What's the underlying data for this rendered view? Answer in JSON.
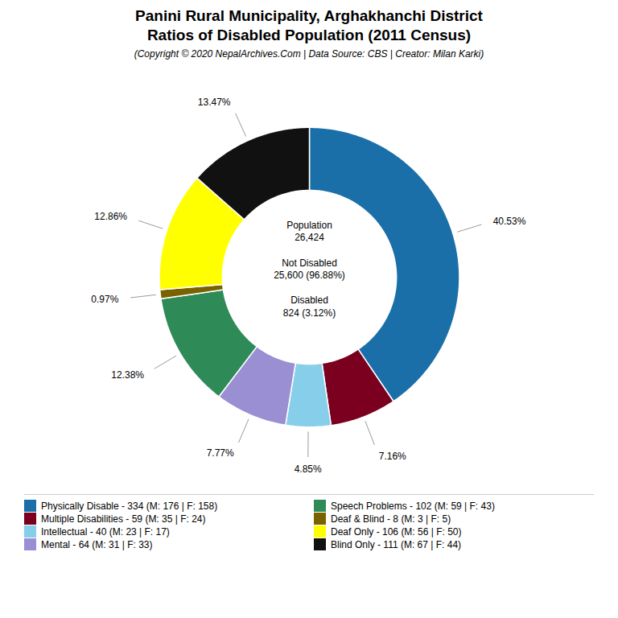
{
  "chart_data": {
    "type": "donut",
    "title": "Panini Rural Municipality, Arghakhanchi District\nRatios of Disabled Population (2011 Census)",
    "subtitle": "(Copyright © 2020 NepalArchives.Com | Data Source: CBS | Creator: Milan Karki)",
    "categories": [
      "Physically Disable - 334 (M: 176 | F: 158)",
      "Multiple Disabilities - 59 (M: 35 | F: 24)",
      "Intellectual - 40 (M: 23 | F: 17)",
      "Mental - 64 (M: 31 | F: 33)",
      "Speech Problems - 102 (M: 59 | F: 43)",
      "Deaf & Blind - 8 (M: 3 | F: 5)",
      "Deaf Only - 106 (M: 56 | F: 50)",
      "Blind Only - 111 (M: 67 | F: 44)"
    ],
    "values": [
      40.53,
      7.16,
      4.85,
      7.77,
      12.38,
      0.97,
      12.86,
      13.47
    ],
    "value_labels": [
      "40.53%",
      "7.16%",
      "4.85%",
      "7.77%",
      "12.38%",
      "0.97%",
      "12.86%",
      "13.47%"
    ],
    "colors": [
      "#1a6fa8",
      "#7b0020",
      "#87ceeb",
      "#9b8fd4",
      "#2e8b57",
      "#7a6200",
      "#ffff00",
      "#111111"
    ],
    "data_labels": true,
    "legend": "bottom",
    "annotations": [
      "Population\n26,424\n\nNot Disabled\n25,600 (96.88%)\n\nDisabled\n824 (3.12%)"
    ]
  }
}
